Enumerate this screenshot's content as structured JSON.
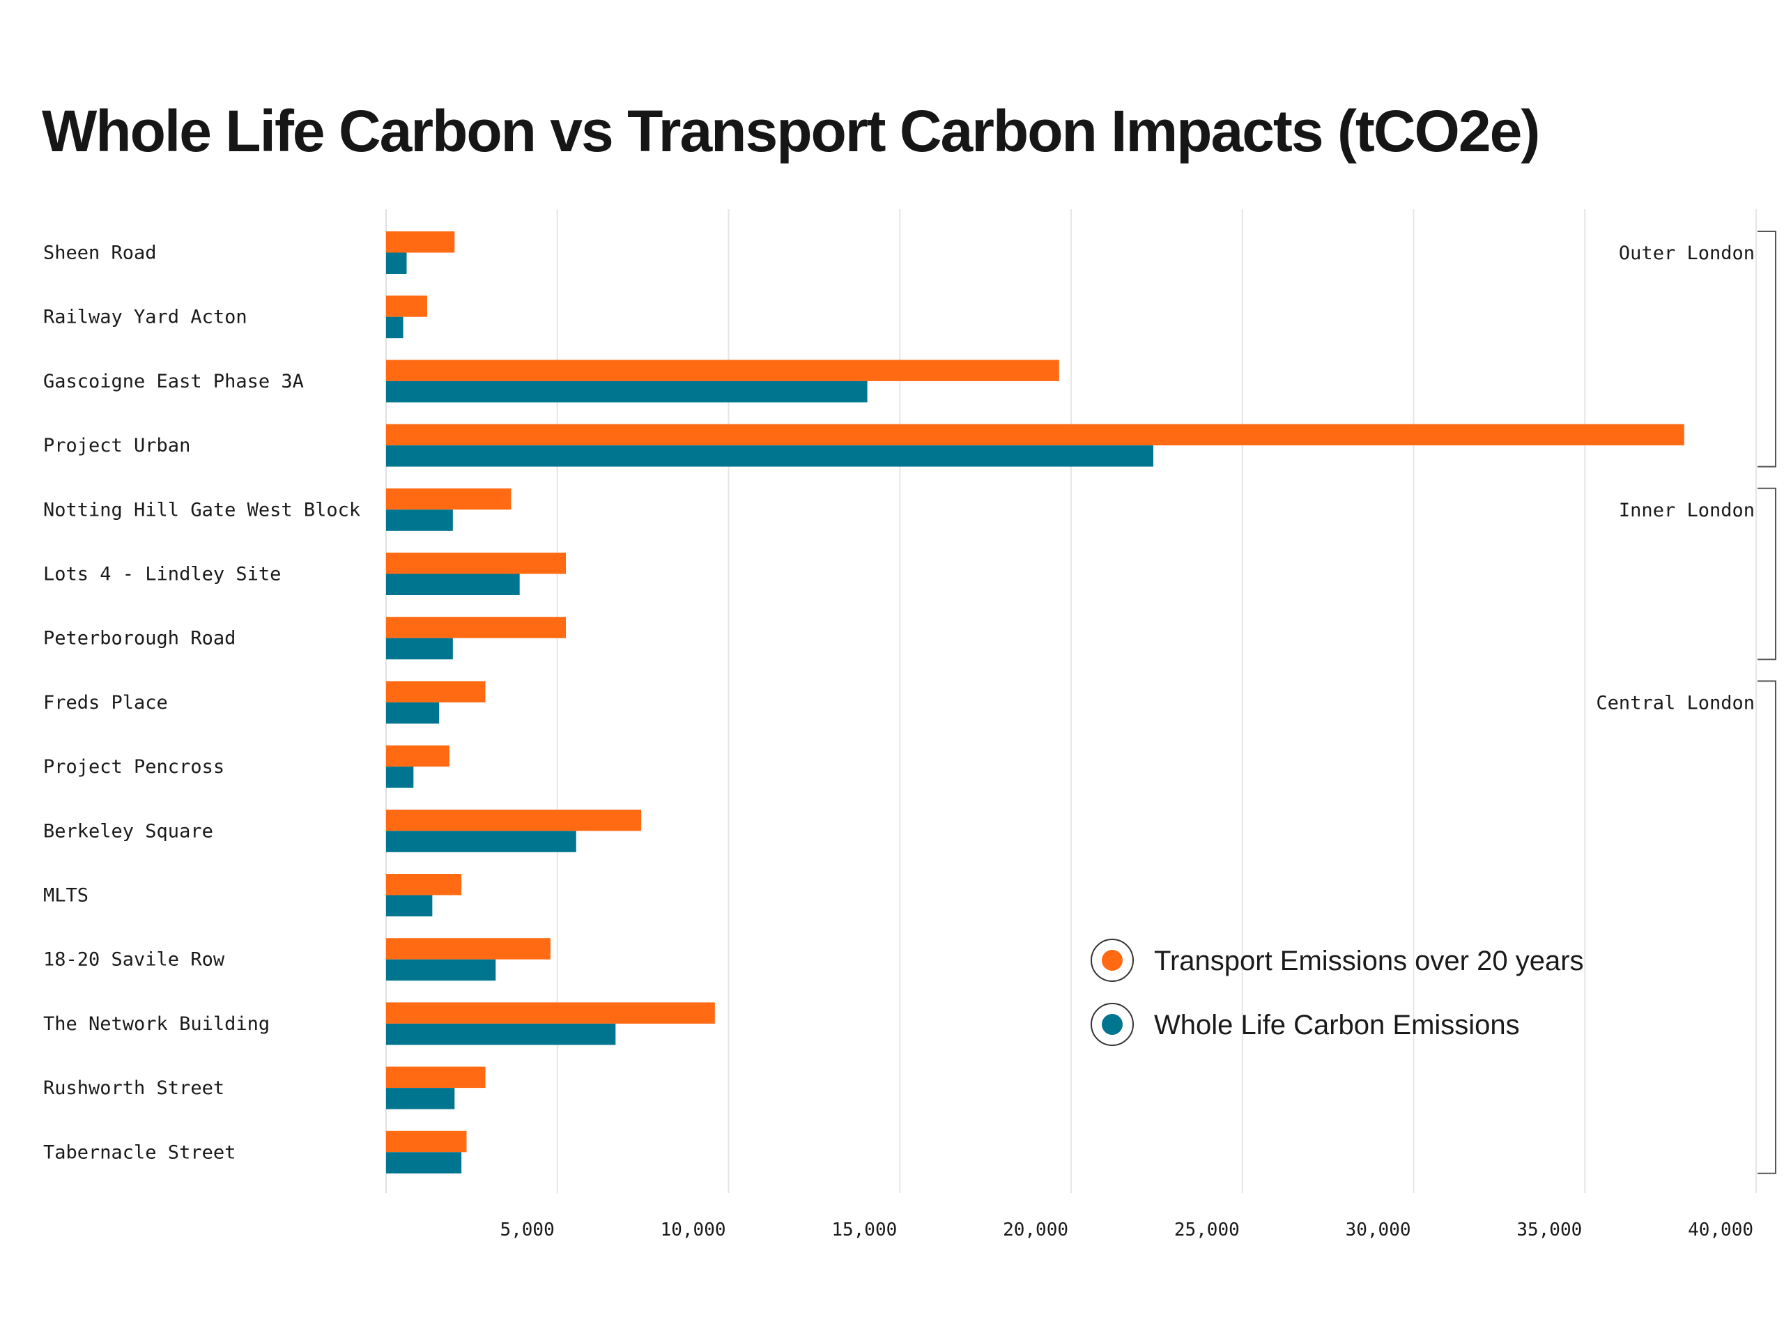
{
  "chart_data": {
    "type": "bar",
    "orientation": "horizontal",
    "title": "Whole Life Carbon vs Transport Carbon Impacts (tCO2e)",
    "categories": [
      "Sheen Road",
      "Railway Yard Acton",
      "Gascoigne East Phase 3A",
      "Project Urban",
      "Notting Hill Gate West Block",
      "Lots 4 - Lindley Site",
      "Peterborough Road",
      "Freds Place",
      "Project Pencross",
      "Berkeley Square",
      "MLTS",
      "18-20 Savile Row",
      "The Network Building",
      "Rushworth Street",
      "Tabernacle Street"
    ],
    "series": [
      {
        "name": "Transport Emissions over 20 years",
        "color": "#ff6a13",
        "values": [
          2000,
          1200,
          19650,
          37900,
          3650,
          5250,
          5250,
          2900,
          1850,
          7450,
          2200,
          4800,
          9600,
          2900,
          2350
        ]
      },
      {
        "name": "Whole Life Carbon Emissions",
        "color": "#007590",
        "values": [
          600,
          500,
          14050,
          22400,
          1950,
          3900,
          1950,
          1550,
          800,
          5550,
          1350,
          3200,
          6700,
          2000,
          2200
        ]
      }
    ],
    "xlim": [
      0,
      40000
    ],
    "x_ticks": [
      "5,000",
      "10,000",
      "15,000",
      "20,000",
      "25,000",
      "30,000",
      "35,000",
      "40,000"
    ],
    "x_tick_values": [
      5000,
      10000,
      15000,
      20000,
      25000,
      30000,
      35000,
      40000
    ],
    "grid": "vertical",
    "legend_position": "bottom-right",
    "groups": [
      {
        "label": "Outer London",
        "from": 0,
        "to": 3
      },
      {
        "label": "Inner London",
        "from": 4,
        "to": 6
      },
      {
        "label": "Central London",
        "from": 7,
        "to": 14
      }
    ]
  }
}
